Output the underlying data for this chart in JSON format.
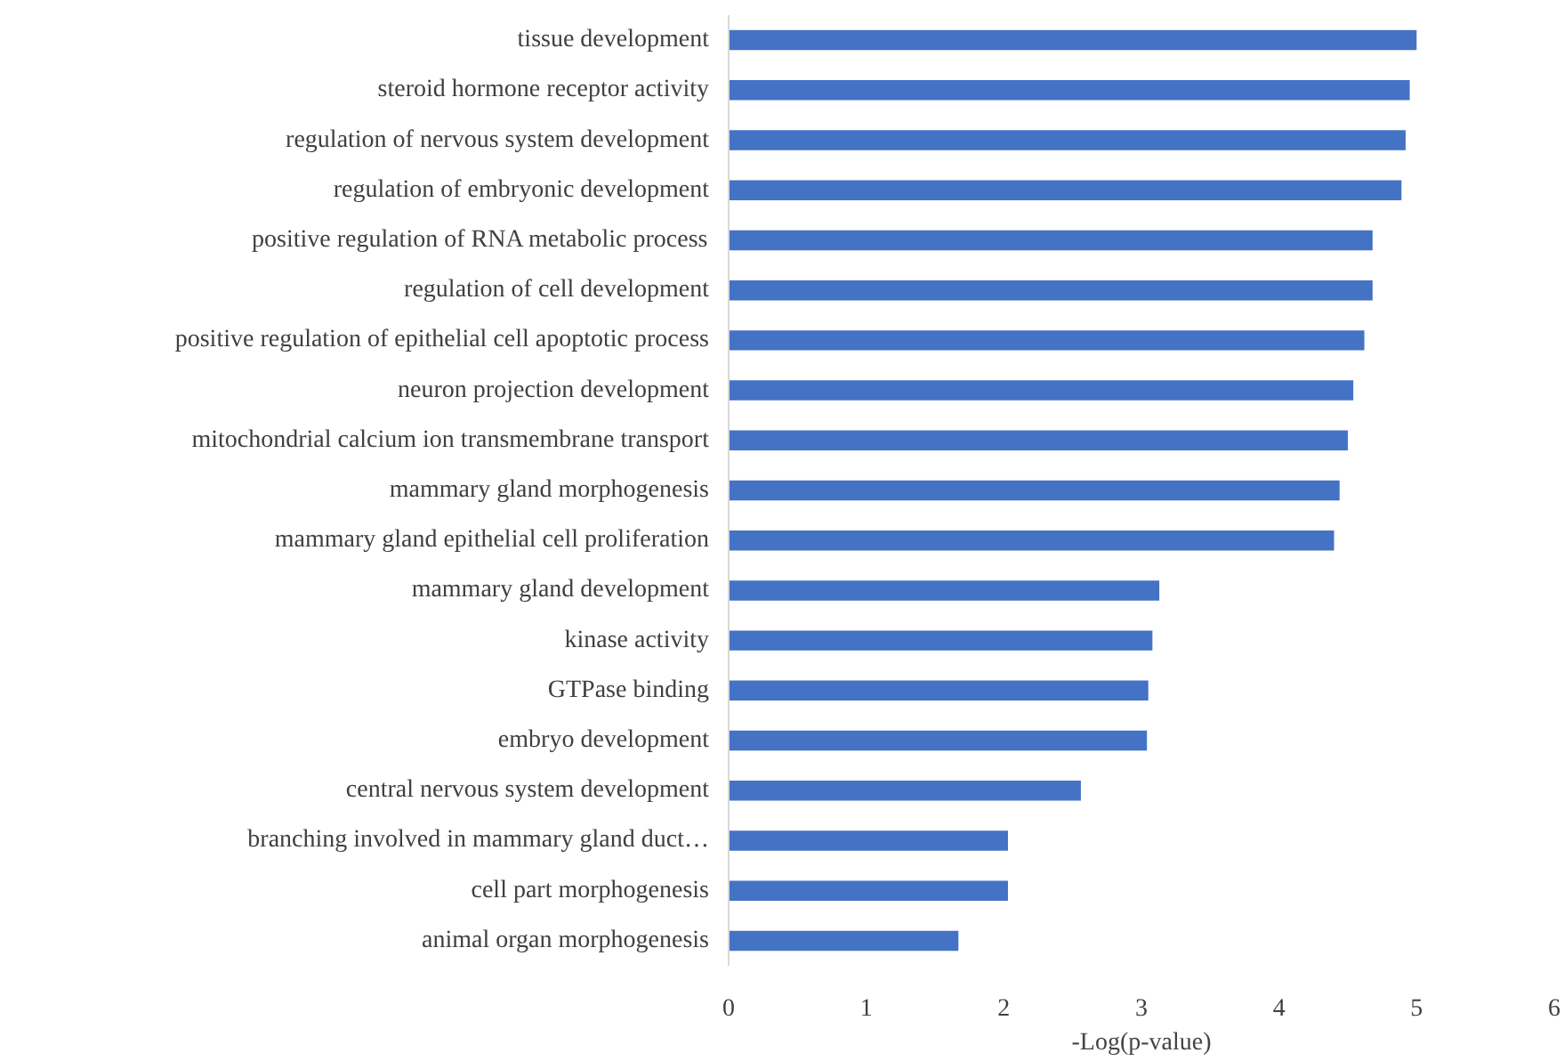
{
  "chart_data": {
    "type": "bar",
    "orientation": "horizontal",
    "xlabel": "-Log(p-value)",
    "categories": [
      "tissue development",
      "steroid hormone receptor activity",
      "regulation of nervous system development",
      "regulation of embryonic development",
      "positive regulation of RNA metabolic process",
      "regulation of cell development",
      "positive regulation of epithelial cell apoptotic process",
      "neuron projection development",
      "mitochondrial calcium ion transmembrane transport",
      "mammary gland morphogenesis",
      "mammary gland epithelial cell proliferation",
      "mammary gland development",
      "kinase activity",
      "GTPase binding",
      "embryo development",
      "central nervous system development",
      "branching involved in mammary gland duct…",
      "cell part morphogenesis",
      "animal organ morphogenesis"
    ],
    "values": [
      5.0,
      4.95,
      4.92,
      4.89,
      4.68,
      4.68,
      4.62,
      4.54,
      4.5,
      4.44,
      4.4,
      3.13,
      3.08,
      3.05,
      3.04,
      2.56,
      2.03,
      2.03,
      1.67
    ],
    "color": "#4472c4",
    "xlim": [
      0,
      6
    ],
    "xticks": [
      0,
      1,
      2,
      3,
      4,
      5,
      6
    ],
    "grid": false
  }
}
